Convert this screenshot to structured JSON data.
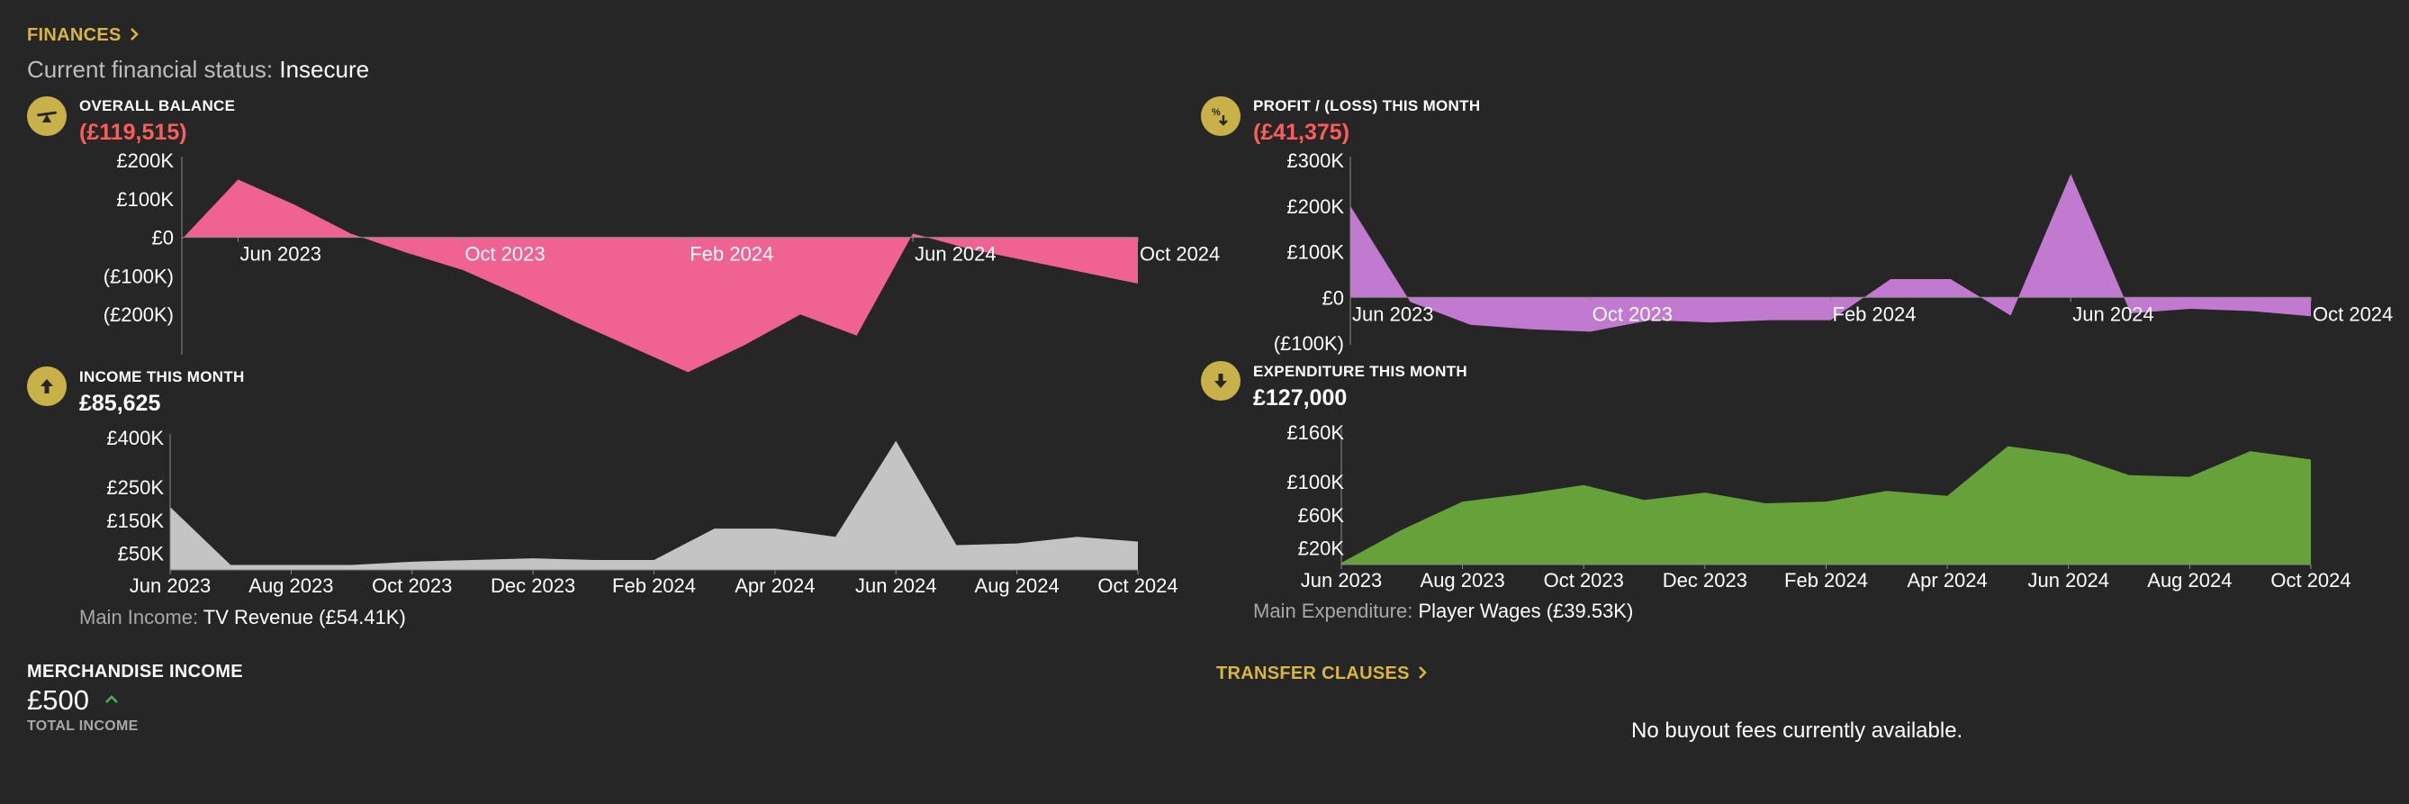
{
  "header": {
    "finances_link": "FINANCES",
    "status_label": "Current financial status:",
    "status_value": "Insecure"
  },
  "panels": {
    "balance": {
      "title": "OVERALL BALANCE",
      "value": "(£119,515)"
    },
    "profit": {
      "title": "PROFIT / (LOSS) THIS MONTH",
      "value": "(£41,375)"
    },
    "income": {
      "title": "INCOME THIS MONTH",
      "value": "£85,625",
      "main_label": "Main Income:",
      "main_value": "TV Revenue (£54.41K)"
    },
    "expenditure": {
      "title": "EXPENDITURE THIS MONTH",
      "value": "£127,000",
      "main_label": "Main Expenditure:",
      "main_value": "Player Wages (£39.53K)"
    }
  },
  "merchandise": {
    "title": "MERCHANDISE INCOME",
    "value": "£500",
    "trend_icon": "up-arrow-icon",
    "subtitle": "TOTAL INCOME"
  },
  "transfer": {
    "title": "TRANSFER CLAUSES",
    "message": "No buyout fees currently available."
  },
  "colors": {
    "accent": "#d9b73e",
    "negative": "#ff5c5c",
    "balance": "#f06292",
    "profit": "#c27ad0",
    "income": "#c4c4c4",
    "expenditure": "#67a13a",
    "trend_up": "#4caf50"
  },
  "chart_data": [
    {
      "id": "balance",
      "type": "area",
      "color": "#f06292",
      "x": [
        "May 2023",
        "Jun 2023",
        "Jul 2023",
        "Aug 2023",
        "Sep 2023",
        "Oct 2023",
        "Nov 2023",
        "Dec 2023",
        "Jan 2024",
        "Feb 2024",
        "Mar 2024",
        "Apr 2024",
        "May 2024",
        "Jun 2024",
        "Jul 2024",
        "Aug 2024",
        "Sep 2024",
        "Oct 2024"
      ],
      "values": [
        -5000,
        150000,
        85000,
        10000,
        -40000,
        -85000,
        -150000,
        -220000,
        -285000,
        -350000,
        -280000,
        -200000,
        -255000,
        10000,
        -30000,
        -60000,
        -90000,
        -120000
      ],
      "y_ticks": [
        {
          "v": 200000,
          "label": "£200K"
        },
        {
          "v": 100000,
          "label": "£100K"
        },
        {
          "v": 0,
          "label": "£0"
        },
        {
          "v": -100000,
          "label": "(£100K)"
        },
        {
          "v": -200000,
          "label": "(£200K)"
        }
      ],
      "x_ticks": [
        {
          "x": "Jun 2023",
          "label": "Jun 2023"
        },
        {
          "x": "Oct 2023",
          "label": "Oct 2023"
        },
        {
          "x": "Feb 2024",
          "label": "Feb 2024"
        },
        {
          "x": "Jun 2024",
          "label": "Jun 2024"
        },
        {
          "x": "Oct 2024",
          "label": "Oct 2024"
        }
      ],
      "ylim": [
        -300000,
        200000
      ]
    },
    {
      "id": "profit",
      "type": "area",
      "color": "#c27ad0",
      "x": [
        "Jun 2023",
        "Jul 2023",
        "Aug 2023",
        "Sep 2023",
        "Oct 2023",
        "Nov 2023",
        "Dec 2023",
        "Jan 2024",
        "Feb 2024",
        "Mar 2024",
        "Apr 2024",
        "May 2024",
        "Jun 2024",
        "Jul 2024",
        "Aug 2024",
        "Sep 2024",
        "Oct 2024"
      ],
      "values": [
        200000,
        -10000,
        -60000,
        -70000,
        -75000,
        -50000,
        -55000,
        -50000,
        -50000,
        40000,
        40000,
        -40000,
        270000,
        -35000,
        -25000,
        -30000,
        -41375
      ],
      "y_ticks": [
        {
          "v": 300000,
          "label": "£300K"
        },
        {
          "v": 200000,
          "label": "£200K"
        },
        {
          "v": 100000,
          "label": "£100K"
        },
        {
          "v": 0,
          "label": "£0"
        },
        {
          "v": -100000,
          "label": "(£100K)"
        }
      ],
      "x_ticks": [
        {
          "x": "Jun 2023",
          "label": "Jun 2023"
        },
        {
          "x": "Oct 2023",
          "label": "Oct 2023"
        },
        {
          "x": "Feb 2024",
          "label": "Feb 2024"
        },
        {
          "x": "Jun 2024",
          "label": "Jun 2024"
        },
        {
          "x": "Oct 2024",
          "label": "Oct 2024"
        }
      ],
      "ylim": [
        -100000,
        300000
      ]
    },
    {
      "id": "income",
      "type": "area",
      "color": "#c4c4c4",
      "x": [
        "Jun 2023",
        "Jul 2023",
        "Aug 2023",
        "Sep 2023",
        "Oct 2023",
        "Nov 2023",
        "Dec 2023",
        "Jan 2024",
        "Feb 2024",
        "Mar 2024",
        "Apr 2024",
        "May 2024",
        "Jun 2024",
        "Jul 2024",
        "Aug 2024",
        "Sep 2024",
        "Oct 2024"
      ],
      "values": [
        190000,
        15000,
        15000,
        15000,
        25000,
        30000,
        35000,
        30000,
        30000,
        125000,
        125000,
        100000,
        390000,
        75000,
        80000,
        100000,
        85625
      ],
      "y_ticks": [
        {
          "v": 400000,
          "label": "£400K"
        },
        {
          "v": 250000,
          "label": "£250K"
        },
        {
          "v": 150000,
          "label": "£150K"
        },
        {
          "v": 50000,
          "label": "£50K"
        }
      ],
      "x_ticks": [
        {
          "x": "Jun 2023",
          "label": "Jun 2023"
        },
        {
          "x": "Aug 2023",
          "label": "Aug 2023"
        },
        {
          "x": "Oct 2023",
          "label": "Oct 2023"
        },
        {
          "x": "Dec 2023",
          "label": "Dec 2023"
        },
        {
          "x": "Feb 2024",
          "label": "Feb 2024"
        },
        {
          "x": "Apr 2024",
          "label": "Apr 2024"
        },
        {
          "x": "Jun 2024",
          "label": "Jun 2024"
        },
        {
          "x": "Aug 2024",
          "label": "Aug 2024"
        },
        {
          "x": "Oct 2024",
          "label": "Oct 2024"
        }
      ],
      "ylim": [
        0,
        400000
      ]
    },
    {
      "id": "expenditure",
      "type": "area",
      "color": "#67a13a",
      "x": [
        "Jun 2023",
        "Jul 2023",
        "Aug 2023",
        "Sep 2023",
        "Oct 2023",
        "Nov 2023",
        "Dec 2023",
        "Jan 2024",
        "Feb 2024",
        "Mar 2024",
        "Apr 2024",
        "May 2024",
        "Jun 2024",
        "Jul 2024",
        "Aug 2024",
        "Sep 2024",
        "Oct 2024"
      ],
      "values": [
        2000,
        42000,
        76000,
        85000,
        96000,
        78000,
        87000,
        74000,
        76000,
        89000,
        83000,
        143000,
        133000,
        108000,
        106000,
        137000,
        127000
      ],
      "y_ticks": [
        {
          "v": 160000,
          "label": "£160K"
        },
        {
          "v": 100000,
          "label": "£100K"
        },
        {
          "v": 60000,
          "label": "£60K"
        },
        {
          "v": 20000,
          "label": "£20K"
        }
      ],
      "x_ticks": [
        {
          "x": "Jun 2023",
          "label": "Jun 2023"
        },
        {
          "x": "Aug 2023",
          "label": "Aug 2023"
        },
        {
          "x": "Oct 2023",
          "label": "Oct 2023"
        },
        {
          "x": "Dec 2023",
          "label": "Dec 2023"
        },
        {
          "x": "Feb 2024",
          "label": "Feb 2024"
        },
        {
          "x": "Apr 2024",
          "label": "Apr 2024"
        },
        {
          "x": "Jun 2024",
          "label": "Jun 2024"
        },
        {
          "x": "Aug 2024",
          "label": "Aug 2024"
        },
        {
          "x": "Oct 2024",
          "label": "Oct 2024"
        }
      ],
      "ylim": [
        0,
        160000
      ]
    }
  ]
}
